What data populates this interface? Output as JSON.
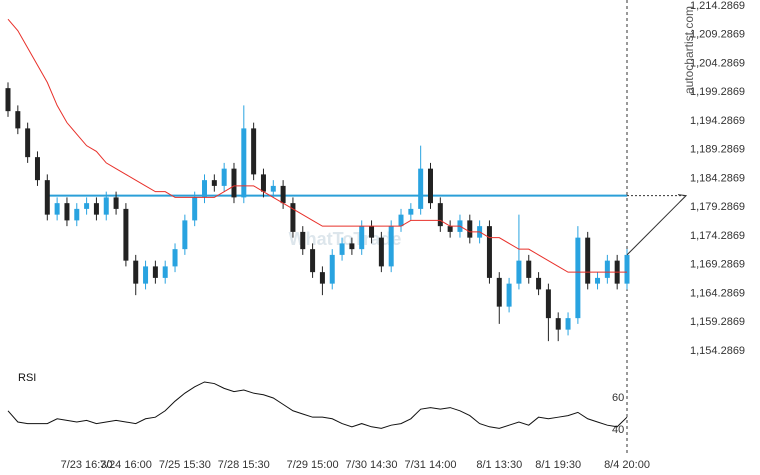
{
  "chart_data": [
    {
      "type": "candlestick",
      "watermark": "autochartist.com",
      "brand": "WhatToTrade",
      "categories": [
        null,
        null,
        null,
        null,
        null,
        null,
        null,
        null,
        "7/23 16:30",
        null,
        null,
        null,
        "7/24 16:00",
        null,
        null,
        null,
        null,
        null,
        "7/25 15:30",
        null,
        null,
        null,
        null,
        null,
        "7/28 15:30",
        null,
        null,
        null,
        null,
        null,
        null,
        "7/29 15:00",
        null,
        null,
        null,
        null,
        null,
        "7/30 14:30",
        null,
        null,
        null,
        null,
        null,
        "7/31 14:00",
        null,
        null,
        null,
        null,
        null,
        null,
        "8/1 13:30",
        null,
        null,
        null,
        null,
        null,
        "8/1 19:30",
        null,
        null,
        null,
        null,
        null,
        null,
        "8/4 20:00"
      ],
      "open": [
        1200,
        1196,
        1193,
        1188,
        1184,
        1178,
        1180,
        1177,
        1179,
        1180,
        1178,
        1181,
        1179,
        1170,
        1166,
        1169,
        1167,
        1169,
        1172,
        1177,
        1181,
        1184,
        1183,
        1186,
        1181,
        1193,
        1185,
        1182,
        1183,
        1180,
        1175,
        1172,
        1168,
        1166,
        1171,
        1173,
        1172,
        1176,
        1174,
        1169,
        1176,
        1178,
        1179,
        1186,
        1180,
        1176,
        1175,
        1177,
        1174,
        1176,
        1167,
        1162,
        1166,
        1170,
        1167,
        1165,
        1160,
        1158,
        1160,
        1174,
        1166,
        1167,
        1170,
        1166
      ],
      "high": [
        1201,
        1197,
        1194,
        1189,
        1185,
        1181,
        1181,
        1180,
        1181,
        1181,
        1182,
        1182,
        1180,
        1171,
        1170,
        1170,
        1170,
        1173,
        1178,
        1182,
        1185,
        1185,
        1187,
        1187,
        1197,
        1194,
        1186,
        1184,
        1184,
        1181,
        1176,
        1173,
        1169,
        1172,
        1174,
        1174,
        1177,
        1177,
        1175,
        1177,
        1179,
        1180,
        1190,
        1187,
        1181,
        1177,
        1178,
        1178,
        1177,
        1177,
        1168,
        1167,
        1178,
        1171,
        1168,
        1166,
        1161,
        1161,
        1176,
        1175,
        1168,
        1171,
        1171,
        1172
      ],
      "low": [
        1195,
        1192,
        1187,
        1183,
        1177,
        1177,
        1176,
        1176,
        1178,
        1177,
        1177,
        1178,
        1169,
        1164,
        1165,
        1166,
        1166,
        1168,
        1171,
        1176,
        1180,
        1182,
        1182,
        1180,
        1180,
        1184,
        1181,
        1181,
        1179,
        1174,
        1171,
        1167,
        1164,
        1165,
        1170,
        1171,
        1171,
        1173,
        1168,
        1168,
        1175,
        1177,
        1178,
        1179,
        1175,
        1174,
        1174,
        1173,
        1173,
        1166,
        1159,
        1161,
        1165,
        1166,
        1164,
        1156,
        1156,
        1157,
        1159,
        1165,
        1165,
        1166,
        1165,
        1165
      ],
      "close": [
        1196,
        1193,
        1188,
        1184,
        1178,
        1180,
        1177,
        1179,
        1180,
        1178,
        1181,
        1179,
        1170,
        1166,
        1169,
        1167,
        1169,
        1172,
        1177,
        1181,
        1184,
        1183,
        1186,
        1181,
        1193,
        1185,
        1182,
        1183,
        1180,
        1175,
        1172,
        1168,
        1166,
        1171,
        1173,
        1172,
        1176,
        1174,
        1169,
        1176,
        1178,
        1179,
        1186,
        1180,
        1176,
        1175,
        1177,
        1174,
        1176,
        1167,
        1162,
        1166,
        1170,
        1167,
        1165,
        1160,
        1158,
        1160,
        1174,
        1166,
        1167,
        1170,
        1166,
        1171
      ],
      "up_color": "#29a3e0",
      "down_color": "#222222",
      "ma": {
        "color": "#e8302a",
        "values": [
          1212,
          1210,
          1207,
          1204,
          1201,
          1197,
          1194,
          1192,
          1190,
          1189,
          1187,
          1186,
          1185,
          1184,
          1183,
          1182,
          1182,
          1181,
          1181,
          1181,
          1181,
          1181,
          1182,
          1183,
          1183,
          1183,
          1182,
          1181,
          1180,
          1179,
          1178,
          1177,
          1176,
          1176,
          1176,
          1176,
          1176,
          1176,
          1176,
          1176,
          1176,
          1177,
          1177,
          1177,
          1177,
          1176,
          1176,
          1175,
          1175,
          1174,
          1174,
          1173,
          1172,
          1172,
          1171,
          1170,
          1169,
          1168,
          1168,
          1168,
          1168,
          1168,
          1168,
          1168
        ]
      },
      "level": {
        "value": 1181.3,
        "color": "#2a9fd8"
      },
      "ylim": [
        1151.85,
        1215.33
      ],
      "yticks": [
        {
          "value": 1214.2869,
          "label": "1,214.2869"
        },
        {
          "value": 1209.2869,
          "label": "1,209.2869"
        },
        {
          "value": 1204.2869,
          "label": "1,204.2869"
        },
        {
          "value": 1199.2869,
          "label": "1,199.2869"
        },
        {
          "value": 1194.2869,
          "label": "1,194.2869"
        },
        {
          "value": 1189.2869,
          "label": "1,189.2869"
        },
        {
          "value": 1184.2869,
          "label": "1,184.2869"
        },
        {
          "value": 1179.2869,
          "label": "1,179.2869"
        },
        {
          "value": 1174.2869,
          "label": "1,174.2869"
        },
        {
          "value": 1169.2869,
          "label": "1,169.2869"
        },
        {
          "value": 1164.2869,
          "label": "1,164.2869"
        },
        {
          "value": 1159.2869,
          "label": "1,159.2869"
        },
        {
          "value": 1154.2869,
          "label": "1,154.2869"
        }
      ]
    },
    {
      "type": "line",
      "title": "RSI",
      "color": "#111111",
      "values": [
        52,
        45,
        44,
        44,
        44,
        47,
        46,
        45,
        46,
        44,
        45,
        46,
        45,
        44,
        47,
        48,
        52,
        58,
        63,
        67,
        70,
        69,
        66,
        64,
        65,
        63,
        62,
        60,
        56,
        52,
        50,
        48,
        48,
        47,
        44,
        42,
        44,
        42,
        41,
        43,
        44,
        47,
        53,
        54,
        53,
        54,
        52,
        49,
        44,
        42,
        41,
        43,
        45,
        43,
        48,
        47,
        48,
        49,
        51,
        47,
        45,
        43,
        42,
        48
      ],
      "ylim": [
        27.5,
        80.6
      ],
      "yticks": [
        40,
        60
      ]
    }
  ]
}
